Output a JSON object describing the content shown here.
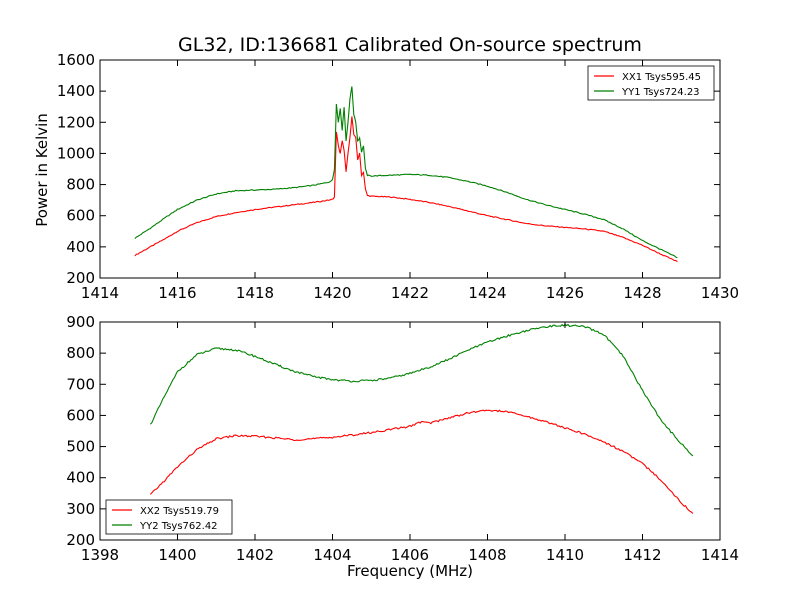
{
  "figure_title": "GL32, ID:136681 Calibrated On-source spectrum",
  "xlabel": "Frequency (MHz)",
  "ylabel": "Power in Kelvin",
  "colors": {
    "xx": "#ff0000",
    "yy": "#008000",
    "axes": "#000000"
  },
  "chart_data": [
    {
      "type": "line",
      "xlabel": "",
      "ylabel": "Power in Kelvin",
      "xlim": [
        1414,
        1430
      ],
      "ylim": [
        200,
        1600
      ],
      "xticks": [
        1414,
        1416,
        1418,
        1420,
        1422,
        1424,
        1426,
        1428,
        1430
      ],
      "yticks": [
        200,
        400,
        600,
        800,
        1000,
        1200,
        1400,
        1600
      ],
      "grid": false,
      "legend_position": "top-right",
      "series": [
        {
          "name": "XX1 Tsys595.45",
          "color": "#ff0000",
          "x": [
            1414.9,
            1415.3,
            1415.7,
            1416.0,
            1416.5,
            1417.0,
            1417.5,
            1418.0,
            1418.5,
            1419.0,
            1419.5,
            1419.9,
            1420.0,
            1420.05,
            1420.1,
            1420.15,
            1420.2,
            1420.25,
            1420.3,
            1420.35,
            1420.4,
            1420.45,
            1420.5,
            1420.55,
            1420.6,
            1420.65,
            1420.7,
            1420.75,
            1420.8,
            1420.85,
            1420.9,
            1421.0,
            1421.5,
            1422.0,
            1422.5,
            1423.0,
            1423.5,
            1424.0,
            1424.5,
            1425.0,
            1425.5,
            1426.0,
            1426.5,
            1427.0,
            1427.5,
            1428.0,
            1428.5,
            1428.9
          ],
          "y": [
            345,
            400,
            455,
            500,
            555,
            595,
            620,
            640,
            655,
            670,
            685,
            700,
            705,
            720,
            1140,
            1050,
            1000,
            1080,
            1020,
            880,
            1000,
            1100,
            1240,
            1120,
            1100,
            960,
            1000,
            860,
            880,
            770,
            730,
            725,
            720,
            705,
            685,
            660,
            630,
            600,
            575,
            550,
            535,
            525,
            515,
            500,
            460,
            410,
            350,
            305
          ]
        },
        {
          "name": "YY1 Tsys724.23",
          "color": "#008000",
          "x": [
            1414.9,
            1415.3,
            1415.7,
            1416.0,
            1416.5,
            1417.0,
            1417.5,
            1418.0,
            1418.5,
            1419.0,
            1419.5,
            1419.9,
            1420.0,
            1420.05,
            1420.1,
            1420.15,
            1420.2,
            1420.25,
            1420.3,
            1420.35,
            1420.4,
            1420.45,
            1420.5,
            1420.55,
            1420.6,
            1420.65,
            1420.7,
            1420.75,
            1420.8,
            1420.85,
            1420.9,
            1421.0,
            1421.5,
            1422.0,
            1422.5,
            1423.0,
            1423.5,
            1424.0,
            1424.5,
            1425.0,
            1425.5,
            1426.0,
            1426.5,
            1427.0,
            1427.5,
            1428.0,
            1428.5,
            1428.9
          ],
          "y": [
            455,
            520,
            590,
            640,
            700,
            740,
            760,
            765,
            770,
            780,
            795,
            815,
            830,
            900,
            1320,
            1200,
            1290,
            1150,
            1300,
            1080,
            1200,
            1350,
            1430,
            1250,
            1200,
            1080,
            1100,
            1010,
            1050,
            900,
            860,
            855,
            860,
            865,
            860,
            845,
            820,
            790,
            750,
            705,
            670,
            640,
            610,
            575,
            515,
            440,
            380,
            330
          ]
        }
      ]
    },
    {
      "type": "line",
      "xlabel": "Frequency (MHz)",
      "ylabel": "",
      "xlim": [
        1398,
        1414
      ],
      "ylim": [
        200,
        900
      ],
      "xticks": [
        1398,
        1400,
        1402,
        1404,
        1406,
        1408,
        1410,
        1412,
        1414
      ],
      "yticks": [
        200,
        300,
        400,
        500,
        600,
        700,
        800,
        900
      ],
      "grid": false,
      "legend_position": "bottom-left",
      "series": [
        {
          "name": "XX2 Tsys519.79",
          "color": "#ff0000",
          "x": [
            1399.3,
            1399.7,
            1400.0,
            1400.5,
            1401.0,
            1401.5,
            1402.0,
            1402.5,
            1403.0,
            1403.5,
            1404.0,
            1404.5,
            1405.0,
            1405.5,
            1406.0,
            1406.3,
            1406.5,
            1407.0,
            1407.5,
            1408.0,
            1408.5,
            1409.0,
            1409.5,
            1410.0,
            1410.5,
            1411.0,
            1411.5,
            1412.0,
            1412.5,
            1413.0,
            1413.3
          ],
          "y": [
            345,
            395,
            435,
            490,
            525,
            535,
            533,
            528,
            522,
            525,
            530,
            537,
            545,
            555,
            565,
            580,
            575,
            592,
            608,
            617,
            612,
            597,
            580,
            560,
            540,
            515,
            485,
            445,
            390,
            320,
            285
          ]
        },
        {
          "name": "YY2 Tsys762.42",
          "color": "#008000",
          "x": [
            1399.3,
            1399.7,
            1400.0,
            1400.5,
            1401.0,
            1401.5,
            1402.0,
            1402.5,
            1403.0,
            1403.5,
            1404.0,
            1404.5,
            1405.0,
            1405.5,
            1406.0,
            1406.5,
            1407.0,
            1407.5,
            1408.0,
            1408.5,
            1409.0,
            1409.5,
            1410.0,
            1410.5,
            1411.0,
            1411.5,
            1412.0,
            1412.5,
            1413.0,
            1413.3
          ],
          "y": [
            570,
            670,
            740,
            795,
            815,
            810,
            790,
            765,
            742,
            725,
            715,
            710,
            712,
            720,
            735,
            755,
            780,
            810,
            835,
            855,
            872,
            885,
            890,
            885,
            860,
            790,
            680,
            580,
            510,
            470
          ]
        }
      ]
    }
  ]
}
